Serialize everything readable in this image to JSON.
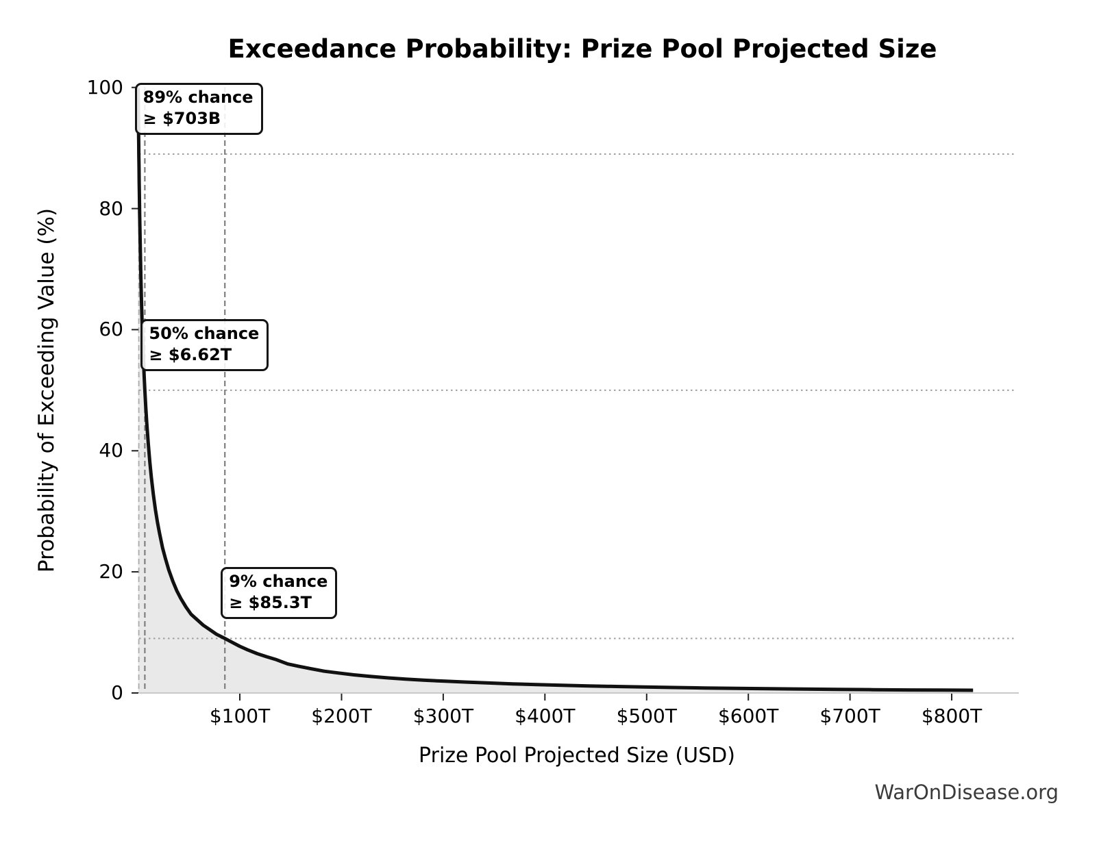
{
  "chart_data": {
    "type": "line",
    "title": "Exceedance Probability: Prize Pool Projected Size",
    "xlabel": "Prize Pool Projected Size (USD)",
    "ylabel": "Probability of Exceeding Value (%)",
    "watermark": "WarOnDisease.org",
    "xlim_trillions": [
      0,
      861
    ],
    "ylim_pct": [
      0,
      100
    ],
    "legend": "none",
    "grid": "dotted horizontal reference lines only at annotated probabilities",
    "x_ticks": [
      {
        "T": 100,
        "label": "$100T"
      },
      {
        "T": 200,
        "label": "$200T"
      },
      {
        "T": 300,
        "label": "$300T"
      },
      {
        "T": 400,
        "label": "$400T"
      },
      {
        "T": 500,
        "label": "$500T"
      },
      {
        "T": 600,
        "label": "$600T"
      },
      {
        "T": 700,
        "label": "$700T"
      },
      {
        "T": 800,
        "label": "$800T"
      }
    ],
    "y_ticks": [
      {
        "pct": 0,
        "label": "0"
      },
      {
        "pct": 20,
        "label": "20"
      },
      {
        "pct": 40,
        "label": "40"
      },
      {
        "pct": 60,
        "label": "60"
      },
      {
        "pct": 80,
        "label": "80"
      },
      {
        "pct": 100,
        "label": "100"
      }
    ],
    "annotations": [
      {
        "pct": 89,
        "T": 0.703,
        "line1": "89% chance",
        "line2": "≥ $703B"
      },
      {
        "pct": 50,
        "T": 6.62,
        "line1": "50% chance",
        "line2": "≥ $6.62T"
      },
      {
        "pct": 9,
        "T": 85.3,
        "line1": "9% chance",
        "line2": "≥ $85.3T"
      }
    ],
    "series": [
      {
        "name": "Exceedance probability curve",
        "points_T_pct": [
          [
            0.02,
            99.9
          ],
          [
            0.05,
            99.6
          ],
          [
            0.1,
            98.9
          ],
          [
            0.15,
            98.1
          ],
          [
            0.2,
            97.2
          ],
          [
            0.3,
            95.5
          ],
          [
            0.4,
            93.8
          ],
          [
            0.5,
            92.1
          ],
          [
            0.6,
            90.6
          ],
          [
            0.703,
            89.0
          ],
          [
            0.85,
            86.9
          ],
          [
            1.0,
            84.5
          ],
          [
            1.2,
            82.5
          ],
          [
            1.5,
            79.2
          ],
          [
            1.8,
            76.2
          ],
          [
            2.2,
            72.7
          ],
          [
            2.7,
            68.8
          ],
          [
            3.2,
            65.5
          ],
          [
            3.8,
            61.9
          ],
          [
            4.5,
            58.4
          ],
          [
            5.3,
            54.8
          ],
          [
            6.0,
            52.1
          ],
          [
            6.62,
            50.0
          ],
          [
            7.5,
            47.3
          ],
          [
            8.5,
            44.6
          ],
          [
            10,
            41.2
          ],
          [
            11.5,
            38.1
          ],
          [
            13,
            35.6
          ],
          [
            15,
            32.7
          ],
          [
            17,
            30.3
          ],
          [
            19,
            28.2
          ],
          [
            21,
            26.4
          ],
          [
            24,
            24.0
          ],
          [
            27,
            22.1
          ],
          [
            30,
            20.4
          ],
          [
            34,
            18.5
          ],
          [
            38,
            16.9
          ],
          [
            42,
            15.6
          ],
          [
            47,
            14.2
          ],
          [
            52,
            13.0
          ],
          [
            58,
            12.1
          ],
          [
            64,
            11.2
          ],
          [
            70,
            10.5
          ],
          [
            77,
            9.7
          ],
          [
            85.3,
            9.0
          ],
          [
            92,
            8.4
          ],
          [
            100,
            7.7
          ],
          [
            108,
            7.1
          ],
          [
            117,
            6.5
          ],
          [
            126,
            6.0
          ],
          [
            136,
            5.5
          ],
          [
            147,
            4.8
          ],
          [
            158,
            4.4
          ],
          [
            170,
            4.0
          ],
          [
            183,
            3.6
          ],
          [
            197,
            3.3
          ],
          [
            212,
            3.0
          ],
          [
            228,
            2.75
          ],
          [
            245,
            2.5
          ],
          [
            263,
            2.3
          ],
          [
            282,
            2.1
          ],
          [
            302,
            1.95
          ],
          [
            323,
            1.8
          ],
          [
            345,
            1.65
          ],
          [
            368,
            1.5
          ],
          [
            392,
            1.38
          ],
          [
            417,
            1.27
          ],
          [
            443,
            1.17
          ],
          [
            470,
            1.07
          ],
          [
            498,
            0.98
          ],
          [
            527,
            0.9
          ],
          [
            557,
            0.83
          ],
          [
            588,
            0.76
          ],
          [
            620,
            0.7
          ],
          [
            653,
            0.64
          ],
          [
            687,
            0.59
          ],
          [
            722,
            0.54
          ],
          [
            758,
            0.5
          ],
          [
            790,
            0.47
          ],
          [
            821,
            0.45
          ]
        ]
      }
    ],
    "colors": {
      "curve": "#111111",
      "fill": "#e9e9e9",
      "dashed_vline": "#7f7f7f",
      "dashed_vline_light": "#ababab",
      "dotted_hline": "#9f9f9f",
      "axis_spine": "#c9c9c9",
      "tick": "#222222",
      "text": "#000000",
      "watermark": "#3a3a3a"
    }
  }
}
